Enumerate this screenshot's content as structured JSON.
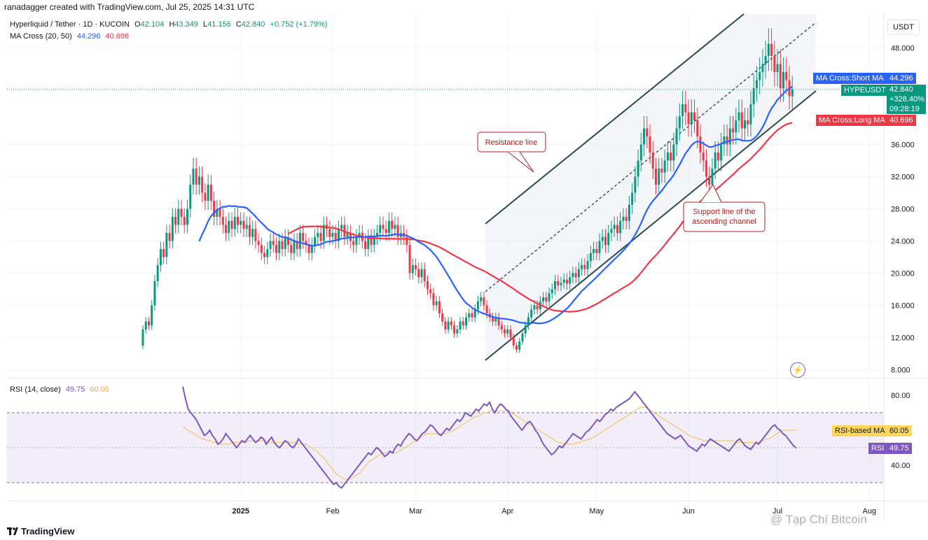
{
  "header": {
    "credit": "ranadagger created with TradingView.com, Jul 25, 2025 14:31 UTC"
  },
  "legend": {
    "symbol": "Hyperliquid / Tether · 1D · KUCOIN",
    "o_label": "O",
    "o": "42.104",
    "h_label": "H",
    "h": "43.349",
    "l_label": "L",
    "l": "41.156",
    "c_label": "C",
    "c": "42.840",
    "change": "+0.752 (+1.79%)",
    "ma_title": "MA Cross (20, 50)",
    "ma_short": "44.296",
    "ma_long": "40.696",
    "rsi_title": "RSI (14, close)",
    "rsi": "49.75",
    "rsi_ma": "60.05"
  },
  "currency": "USDT",
  "tags": {
    "ma_short_label": "MA Cross:Short MA",
    "ma_short_value": "44.296",
    "symbol_label": "HYPEUSDT",
    "price": "42.840",
    "pct": "+328.40%",
    "countdown": "09:28:19",
    "ma_long_label": "MA Cross:Long MA",
    "ma_long_value": "40.696",
    "rsi_ma_label": "RSI-based MA",
    "rsi_ma_value": "60.05",
    "rsi_label": "RSI",
    "rsi_value": "49.75"
  },
  "annotations": {
    "resistance": "Resistance line",
    "support_1": "Support line of the",
    "support_2": "ascending channel"
  },
  "footer": {
    "brand": "TradingView",
    "watermark": "@ Tạp Chí Bitcoin"
  },
  "colors": {
    "up": "#089981",
    "down": "#f23645",
    "ma_short": "#2962ff",
    "ma_long": "#f23645",
    "rsi": "#7e57c2",
    "rsi_ma": "#f5c66b",
    "channel": "#2a4a52"
  },
  "chart_data": [
    {
      "type": "candlestick",
      "title": "Hyperliquid / Tether · 1D · KUCOIN",
      "y_ticks": [
        8,
        12,
        16,
        20,
        24,
        28,
        32,
        36,
        48
      ],
      "y_tick_labels": [
        "8.000",
        "12.000",
        "16.000",
        "20.000",
        "24.000",
        "28.000",
        "32.000",
        "36.000",
        "48.000"
      ],
      "ylim": [
        6.5,
        54
      ],
      "x_ticks": [
        "2025",
        "Feb",
        "Mar",
        "Apr",
        "May",
        "Jun",
        "Jul",
        "Aug"
      ],
      "x_tick_dates": [
        "2025-01-01",
        "2025-02-01",
        "2025-03-01",
        "2025-04-01",
        "2025-05-01",
        "2025-06-01",
        "2025-07-01",
        "2025-08-01"
      ],
      "grid": true,
      "closes": {
        "start_date": "2024-11-29",
        "values": [
          13.0,
          14.0,
          13.5,
          16.0,
          19.0,
          21.0,
          23.0,
          22.0,
          25.0,
          24.0,
          27.0,
          26.0,
          28.0,
          27.0,
          26.0,
          28.0,
          31.0,
          33.0,
          31.0,
          32.0,
          30.0,
          29.0,
          31.0,
          29.0,
          27.0,
          28.0,
          27.0,
          26.0,
          25.0,
          26.5,
          25.5,
          27.0,
          26.0,
          26.5,
          25.5,
          26.0,
          24.5,
          25.5,
          24.0,
          23.5,
          22.5,
          22.0,
          23.0,
          24.0,
          23.5,
          22.5,
          24.0,
          23.0,
          24.5,
          23.5,
          22.5,
          24.0,
          23.0,
          25.0,
          24.0,
          23.5,
          22.5,
          23.5,
          24.5,
          25.0,
          24.0,
          26.0,
          25.5,
          24.5,
          25.0,
          24.0,
          25.5,
          26.0,
          24.5,
          25.0,
          24.0,
          23.5,
          24.5,
          25.0,
          24.0,
          23.0,
          24.5,
          23.5,
          24.5,
          25.0,
          26.0,
          25.5,
          25.0,
          26.5,
          25.5,
          26.0,
          24.5,
          25.0,
          24.5,
          23.5,
          20.0,
          21.0,
          20.5,
          19.5,
          20.5,
          19.0,
          18.0,
          17.5,
          16.0,
          16.5,
          15.0,
          14.0,
          13.0,
          14.0,
          13.5,
          12.5,
          13.0,
          14.0,
          13.5,
          14.5,
          15.0,
          14.5,
          15.5,
          16.5,
          17.0,
          16.0,
          15.0,
          14.5,
          14.0,
          14.5,
          13.5,
          13.0,
          12.5,
          13.0,
          12.0,
          11.0,
          10.5,
          11.5,
          12.5,
          13.5,
          14.5,
          15.5,
          16.0,
          15.5,
          16.5,
          17.0,
          16.5,
          17.5,
          18.0,
          19.0,
          18.5,
          18.8,
          19.2,
          18.7,
          19.5,
          20.0,
          19.5,
          20.5,
          21.0,
          20.5,
          21.5,
          22.5,
          23.0,
          22.5,
          24.0,
          24.5,
          23.5,
          25.0,
          25.5,
          26.0,
          25.0,
          26.5,
          27.0,
          26.5,
          28.5,
          30.0,
          32.0,
          34.0,
          36.0,
          38.0,
          37.0,
          35.0,
          33.0,
          31.0,
          33.0,
          32.5,
          34.0,
          35.0,
          34.0,
          36.0,
          38.0,
          39.5,
          41.0,
          40.0,
          38.5,
          40.0,
          39.0,
          37.0,
          35.0,
          34.0,
          32.0,
          31.0,
          33.0,
          35.0,
          34.0,
          36.0,
          37.0,
          36.0,
          38.0,
          37.5,
          39.0,
          40.0,
          38.0,
          39.0,
          38.5,
          41.0,
          43.0,
          44.0,
          45.0,
          46.0,
          47.0,
          48.5,
          47.0,
          45.0,
          46.0,
          43.0,
          45.0,
          44.0,
          42.0,
          42.84
        ]
      }
    },
    {
      "type": "line",
      "title": "RSI (14, close)",
      "y_ticks": [
        40,
        80
      ],
      "y_tick_labels": [
        "40.00",
        "80.00"
      ],
      "bands": [
        30,
        70
      ],
      "ylim": [
        22,
        88
      ],
      "series": [
        {
          "name": "RSI",
          "values": [
            85,
            78,
            72,
            70,
            68,
            66,
            63,
            60,
            57,
            58,
            60,
            57,
            55,
            52,
            53,
            55,
            58,
            56,
            54,
            52,
            50,
            52,
            54,
            53,
            55,
            57,
            55,
            53,
            54,
            56,
            55,
            52,
            54,
            56,
            53,
            51,
            50,
            52,
            54,
            53,
            51,
            50,
            52,
            55,
            53,
            51,
            49,
            47,
            45,
            43,
            41,
            39,
            37,
            35,
            33,
            31,
            29,
            30,
            28,
            27,
            29,
            31,
            33,
            35,
            37,
            39,
            41,
            43,
            45,
            47,
            46,
            48,
            50,
            49,
            47,
            45,
            46,
            48,
            47,
            50,
            52,
            51,
            54,
            56,
            58,
            57,
            55,
            54,
            56,
            58,
            59,
            61,
            63,
            62,
            60,
            58,
            57,
            59,
            61,
            60,
            62,
            64,
            66,
            65,
            67,
            70,
            69,
            68,
            70,
            72,
            71,
            73,
            75,
            74,
            76,
            72,
            70,
            73,
            75,
            74,
            72,
            71,
            68,
            66,
            64,
            62,
            60,
            62,
            64,
            65,
            63,
            60,
            58,
            55,
            52,
            50,
            48,
            46,
            47,
            49,
            51,
            50,
            52,
            54,
            56,
            58,
            57,
            56,
            55,
            57,
            59,
            60,
            62,
            64,
            66,
            65,
            67,
            69,
            70,
            72,
            71,
            73,
            74,
            75,
            76,
            77,
            78,
            80,
            82,
            80,
            78,
            76,
            74,
            72,
            70,
            68,
            66,
            64,
            62,
            60,
            58,
            57,
            56,
            55,
            56,
            57,
            55,
            53,
            51,
            50,
            49,
            48,
            50,
            52,
            51,
            53,
            55,
            54,
            53,
            52,
            51,
            50,
            49,
            48,
            50,
            52,
            54,
            55,
            53,
            51,
            50,
            49,
            51,
            53,
            52,
            54,
            56,
            58,
            60,
            62,
            63,
            61,
            60,
            58,
            57,
            55,
            53,
            51,
            49.75
          ]
        },
        {
          "name": "RSI-based MA",
          "values": [
            62,
            61,
            60,
            59,
            58,
            57,
            56,
            55,
            55,
            54,
            54,
            53,
            53,
            52,
            52,
            52,
            52,
            52,
            53,
            53,
            53,
            53,
            53,
            53,
            54,
            54,
            54,
            54,
            54,
            54,
            54,
            53,
            53,
            53,
            53,
            53,
            53,
            53,
            53,
            53,
            53,
            53,
            52,
            52,
            52,
            52,
            51,
            50,
            49,
            48,
            46,
            45,
            43,
            41,
            39,
            37,
            35,
            34,
            33,
            32,
            32,
            32,
            33,
            34,
            35,
            36,
            38,
            40,
            42,
            43,
            44,
            45,
            46,
            47,
            47,
            47,
            47,
            47,
            47,
            48,
            49,
            50,
            51,
            52,
            53,
            54,
            55,
            56,
            57,
            58,
            58,
            58,
            58,
            58,
            58,
            58,
            58,
            59,
            59,
            60,
            61,
            62,
            63,
            64,
            65,
            66,
            67,
            68,
            68,
            69,
            70,
            70,
            71,
            71,
            71,
            71,
            71,
            71,
            71,
            71,
            70,
            69,
            68,
            67,
            66,
            65,
            64,
            63,
            62,
            61,
            60,
            59,
            58,
            57,
            56,
            55,
            54,
            53,
            53,
            52,
            52,
            52,
            52,
            52,
            53,
            53,
            54,
            54,
            55,
            55,
            56,
            57,
            58,
            59,
            60,
            61,
            62,
            63,
            64,
            65,
            66,
            67,
            68,
            69,
            70,
            71,
            72,
            73,
            73,
            73,
            72,
            71,
            70,
            69,
            68,
            67,
            66,
            65,
            64,
            63,
            62,
            61,
            60,
            59,
            58,
            57,
            56,
            56,
            55,
            55,
            54,
            54,
            54,
            54,
            54,
            54,
            54,
            54,
            54,
            54,
            54,
            54,
            53,
            53,
            53,
            53,
            53,
            53,
            53,
            53,
            53,
            54,
            54,
            55,
            55,
            56,
            57,
            58,
            59,
            60,
            60,
            60,
            60,
            60,
            60.05
          ]
        }
      ]
    }
  ]
}
